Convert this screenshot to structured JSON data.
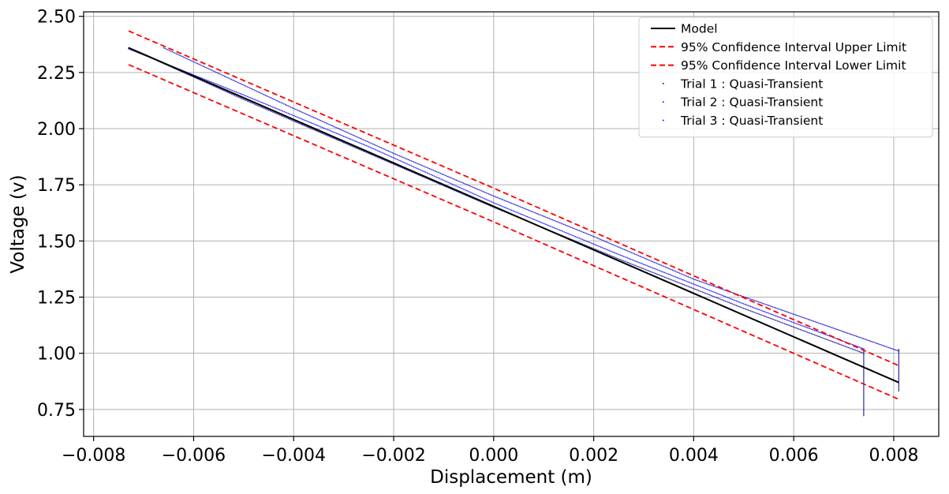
{
  "chart_data": {
    "type": "line",
    "title": "",
    "xlabel": "Displacement (m)",
    "ylabel": "Voltage (v)",
    "xlim": [
      -0.0082,
      0.0089
    ],
    "ylim": [
      0.63,
      2.52
    ],
    "xticks": [
      -0.008,
      -0.006,
      -0.004,
      -0.002,
      0.0,
      0.002,
      0.004,
      0.006,
      0.008
    ],
    "xtick_labels": [
      "−0.008",
      "−0.006",
      "−0.004",
      "−0.002",
      "0.000",
      "0.002",
      "0.004",
      "0.006",
      "0.008"
    ],
    "yticks": [
      0.75,
      1.0,
      1.25,
      1.5,
      1.75,
      2.0,
      2.25,
      2.5
    ],
    "ytick_labels": [
      "0.75",
      "1.00",
      "1.25",
      "1.50",
      "1.75",
      "2.00",
      "2.25",
      "2.50"
    ],
    "grid": true,
    "legend_position": "top-right",
    "series": [
      {
        "name": "Model",
        "style": "solid",
        "color": "#000000",
        "x": [
          -0.0073,
          0.0081
        ],
        "y": [
          2.36,
          0.87
        ]
      },
      {
        "name": "95% Confidence Interval Upper Limit",
        "style": "dashed",
        "color": "#ff0000",
        "x": [
          -0.0073,
          0.0,
          0.0081
        ],
        "y": [
          2.435,
          1.735,
          0.945
        ]
      },
      {
        "name": "95% Confidence Interval Lower Limit",
        "style": "dashed",
        "color": "#ff0000",
        "x": [
          -0.0073,
          0.0,
          0.0081
        ],
        "y": [
          2.285,
          1.585,
          0.795
        ]
      },
      {
        "name": "Trial 1 : Quasi-Transient",
        "style": "points",
        "color": "#00008b",
        "x": [
          -0.0073,
          -0.005,
          -0.0025,
          0.0,
          0.0025,
          0.005,
          0.0074
        ],
        "y": [
          2.36,
          2.13,
          1.89,
          1.65,
          1.42,
          1.2,
          1.0
        ]
      },
      {
        "name": "Trial 2 : Quasi-Transient",
        "style": "points",
        "color": "#0000cd",
        "x": [
          -0.0066,
          -0.004,
          -0.002,
          0.0,
          0.002,
          0.004,
          0.0081
        ],
        "y": [
          2.36,
          2.09,
          1.89,
          1.7,
          1.52,
          1.33,
          1.01
        ]
      },
      {
        "name": "Trial 3 : Quasi-Transient",
        "style": "points",
        "color": "#0000ff",
        "x": [
          -0.0073,
          -0.005,
          -0.0025,
          0.0,
          0.0025,
          0.005,
          0.0074
        ],
        "y": [
          2.355,
          2.15,
          1.92,
          1.67,
          1.44,
          1.22,
          1.02
        ]
      }
    ],
    "annotations": [
      {
        "type": "vertical-drop",
        "x": 0.0074,
        "y_top": 1.02,
        "y_bottom": 0.72
      },
      {
        "type": "vertical-drop",
        "x": 0.0081,
        "y_top": 1.02,
        "y_bottom": 0.83
      }
    ]
  }
}
